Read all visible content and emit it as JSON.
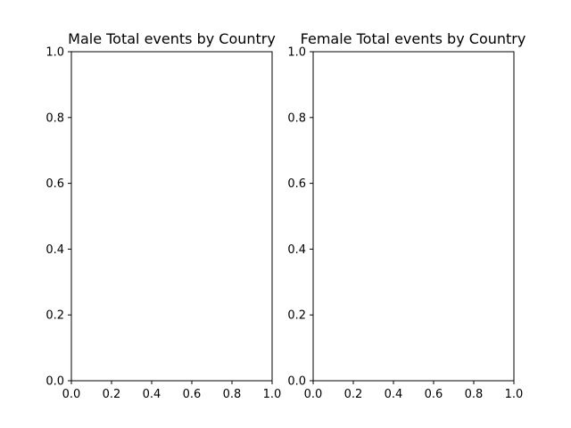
{
  "chart_data": [
    {
      "type": "bar",
      "title": "Male Total events by Country",
      "xlabel": "",
      "ylabel": "",
      "xlim": [
        0.0,
        1.0
      ],
      "ylim": [
        0.0,
        1.0
      ],
      "xticks": [
        "0.0",
        "0.2",
        "0.4",
        "0.6",
        "0.8",
        "1.0"
      ],
      "yticks": [
        "0.0",
        "0.2",
        "0.4",
        "0.6",
        "0.8",
        "1.0"
      ],
      "categories": [],
      "values": [],
      "grid": false
    },
    {
      "type": "bar",
      "title": "Female Total events by Country",
      "xlabel": "",
      "ylabel": "",
      "xlim": [
        0.0,
        1.0
      ],
      "ylim": [
        0.0,
        1.0
      ],
      "xticks": [
        "0.0",
        "0.2",
        "0.4",
        "0.6",
        "0.8",
        "1.0"
      ],
      "yticks": [
        "0.0",
        "0.2",
        "0.4",
        "0.6",
        "0.8",
        "1.0"
      ],
      "categories": [],
      "values": [],
      "grid": false
    }
  ]
}
